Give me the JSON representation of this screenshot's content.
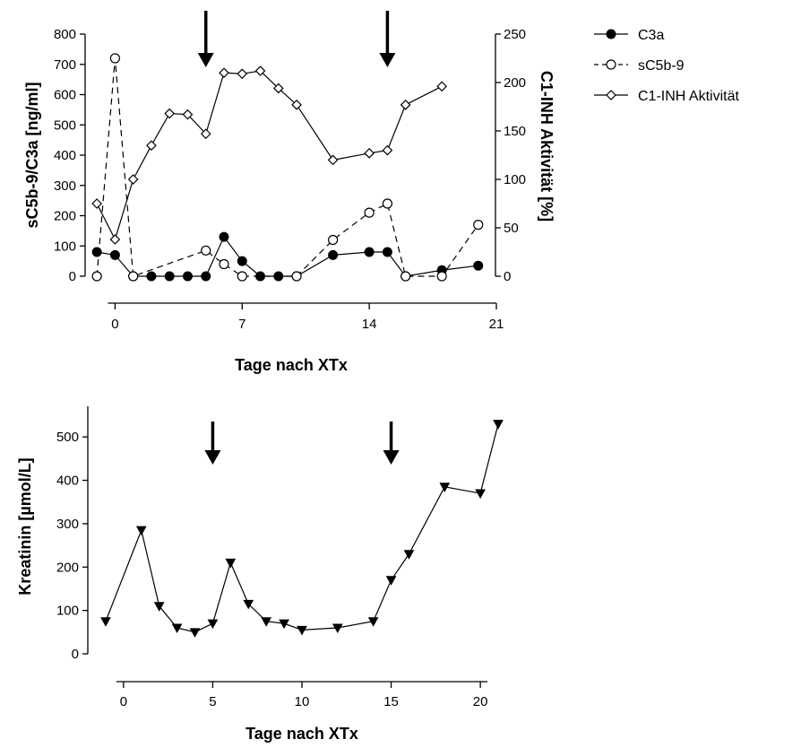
{
  "chart_data": [
    {
      "type": "line",
      "xlabel": "Tage nach XTx",
      "ylabel": "sC5b-9/C3a [ng/ml]",
      "y2label": "C1-INH Aktivität [%]",
      "xlim": [
        -1.5,
        21
      ],
      "xticks": [
        0,
        7,
        14,
        21
      ],
      "ylim": [
        0,
        800
      ],
      "yticks": [
        0,
        100,
        200,
        300,
        400,
        500,
        600,
        700,
        800
      ],
      "y2lim": [
        0,
        250
      ],
      "y2ticks": [
        0,
        50,
        100,
        150,
        200,
        250
      ],
      "arrows_at_x": [
        5,
        15
      ],
      "legend_position": "right-outside-top",
      "series": [
        {
          "name": "C3a",
          "axis": "left",
          "marker": "filled-circle",
          "line": "solid",
          "x": [
            -1,
            0,
            1,
            2,
            3,
            4,
            5,
            6,
            7,
            8,
            9,
            10,
            12,
            14,
            15,
            16,
            18,
            20
          ],
          "y": [
            80,
            70,
            0,
            0,
            0,
            0,
            0,
            130,
            50,
            0,
            0,
            0,
            70,
            80,
            80,
            0,
            20,
            35
          ]
        },
        {
          "name": "sC5b-9",
          "axis": "left",
          "marker": "open-circle",
          "line": "dashed",
          "x": [
            -1,
            0,
            1,
            5,
            6,
            7,
            10,
            12,
            14,
            15,
            16,
            18,
            20
          ],
          "y": [
            0,
            720,
            0,
            85,
            40,
            0,
            0,
            120,
            210,
            240,
            0,
            0,
            170
          ]
        },
        {
          "name": "C1-INH Aktivität",
          "axis": "right",
          "marker": "open-diamond",
          "line": "solid",
          "x": [
            -1,
            0,
            1,
            2,
            3,
            4,
            5,
            6,
            7,
            8,
            9,
            10,
            12,
            14,
            15,
            16,
            18
          ],
          "y": [
            75,
            38,
            100,
            135,
            168,
            167,
            147,
            210,
            209,
            212,
            194,
            177,
            120,
            127,
            130,
            177,
            196
          ]
        }
      ]
    },
    {
      "type": "line",
      "xlabel": "Tage nach XTx",
      "ylabel": "Kreatinin [µmol/L]",
      "xlim": [
        -1.5,
        21.3
      ],
      "xticks": [
        0,
        5,
        10,
        15,
        20
      ],
      "ylim": [
        0,
        550
      ],
      "yticks": [
        0,
        100,
        200,
        300,
        400,
        500
      ],
      "arrows_at_x": [
        5,
        15
      ],
      "series": [
        {
          "name": "",
          "marker": "filled-down-triangle",
          "line": "solid",
          "x": [
            -1,
            1,
            2,
            3,
            4,
            5,
            6,
            7,
            8,
            9,
            10,
            12,
            14,
            15,
            16,
            18,
            20,
            21
          ],
          "y": [
            75,
            285,
            110,
            60,
            50,
            70,
            210,
            115,
            75,
            70,
            55,
            60,
            75,
            170,
            230,
            385,
            370,
            530
          ]
        }
      ]
    }
  ]
}
